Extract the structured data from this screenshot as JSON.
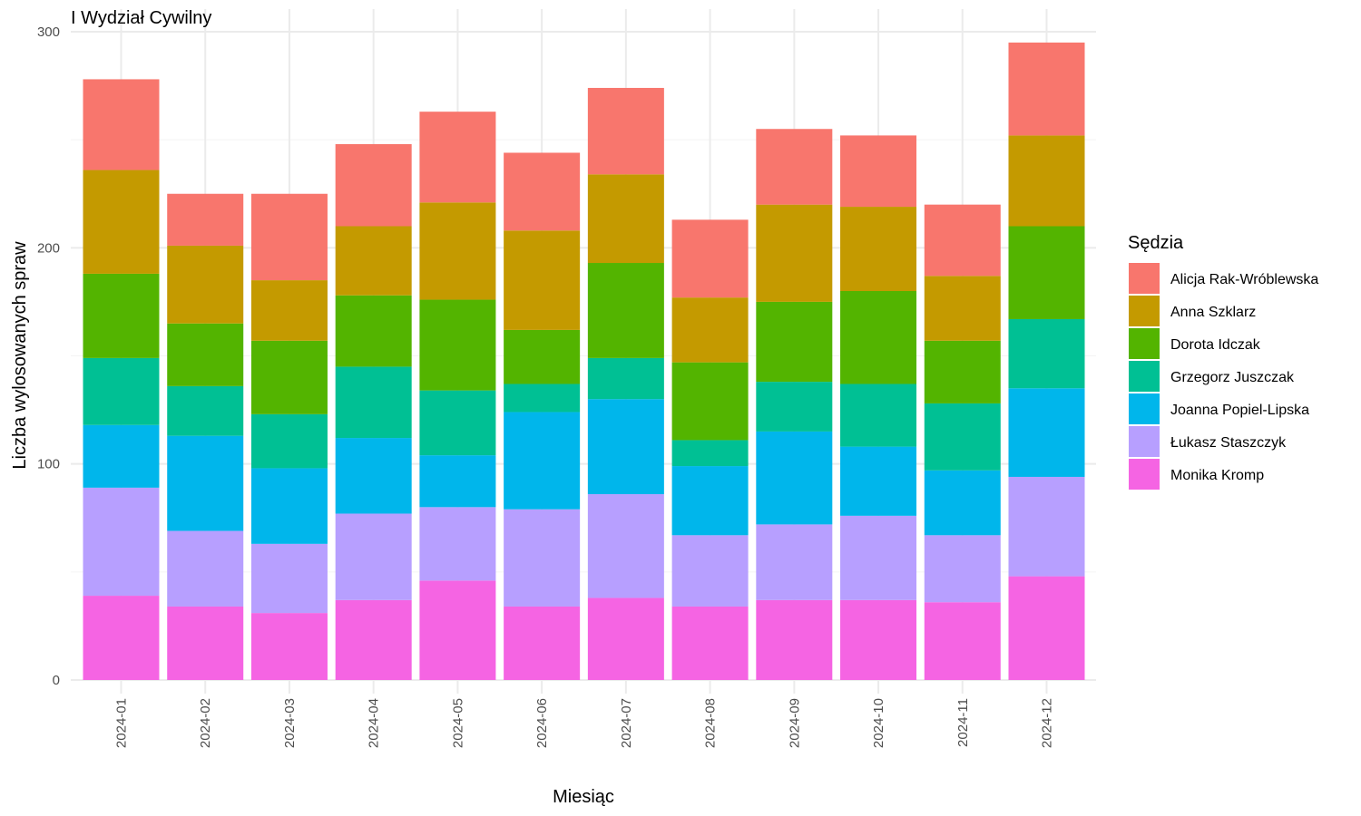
{
  "chart_data": {
    "type": "bar",
    "stacked": true,
    "title": "I Wydział Cywilny",
    "xlabel": "Miesiąc",
    "ylabel": "Liczba wylosowanych spraw",
    "ylim": [
      0,
      300
    ],
    "yticks": [
      0,
      100,
      200,
      300
    ],
    "grid": true,
    "legend_title": "Sędzia",
    "legend_position": "right",
    "categories": [
      "2024-01",
      "2024-02",
      "2024-03",
      "2024-04",
      "2024-05",
      "2024-06",
      "2024-07",
      "2024-08",
      "2024-09",
      "2024-10",
      "2024-11",
      "2024-12"
    ],
    "series": [
      {
        "name": "Monika Kromp",
        "color": "#F564E3",
        "values": [
          39,
          34,
          31,
          37,
          46,
          34,
          38,
          34,
          37,
          37,
          36,
          48
        ]
      },
      {
        "name": "Łukasz Staszczyk",
        "color": "#B79FFF",
        "values": [
          50,
          35,
          32,
          40,
          34,
          45,
          48,
          33,
          35,
          39,
          31,
          46
        ]
      },
      {
        "name": "Joanna Popiel-Lipska",
        "color": "#00B6EB",
        "values": [
          29,
          44,
          35,
          35,
          24,
          45,
          44,
          32,
          43,
          32,
          30,
          41
        ]
      },
      {
        "name": "Grzegorz Juszczak",
        "color": "#00C094",
        "values": [
          31,
          23,
          25,
          33,
          30,
          13,
          19,
          12,
          23,
          29,
          31,
          32
        ]
      },
      {
        "name": "Dorota Idczak",
        "color": "#53B400",
        "values": [
          39,
          29,
          34,
          33,
          42,
          25,
          44,
          36,
          37,
          43,
          29,
          43
        ]
      },
      {
        "name": "Anna Szklarz",
        "color": "#C49A00",
        "values": [
          48,
          36,
          28,
          32,
          45,
          46,
          41,
          30,
          45,
          39,
          30,
          42
        ]
      },
      {
        "name": "Alicja Rak-Wróblewska",
        "color": "#F8766D",
        "values": [
          42,
          24,
          40,
          38,
          42,
          36,
          40,
          36,
          35,
          33,
          33,
          43
        ]
      }
    ],
    "legend_order": [
      "Alicja Rak-Wróblewska",
      "Anna Szklarz",
      "Dorota Idczak",
      "Grzegorz Juszczak",
      "Joanna Popiel-Lipska",
      "Łukasz Staszczyk",
      "Monika Kromp"
    ]
  }
}
